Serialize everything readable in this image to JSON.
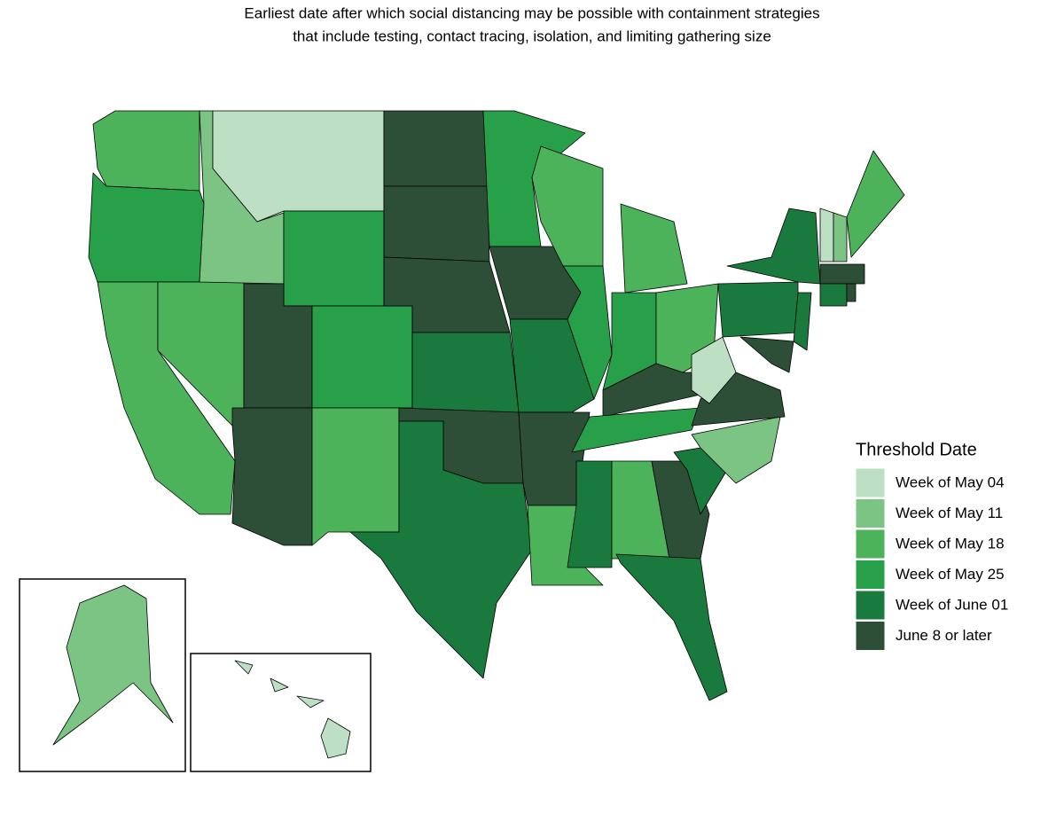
{
  "title": {
    "line1": "Earliest date after which social distancing may be possible with containment strategies",
    "line2": "that include testing, contact tracing, isolation, and limiting gathering size"
  },
  "legend": {
    "title": "Threshold Date",
    "items": [
      {
        "label": "Week of May 04",
        "color": "#bde0c4"
      },
      {
        "label": "Week of May 11",
        "color": "#7cc484"
      },
      {
        "label": "Week of May 18",
        "color": "#4db35b"
      },
      {
        "label": "Week of May 25",
        "color": "#28a049"
      },
      {
        "label": "Week of June 01",
        "color": "#1a7a3e"
      },
      {
        "label": "June 8 or later",
        "color": "#2d4f38"
      }
    ]
  }
}
